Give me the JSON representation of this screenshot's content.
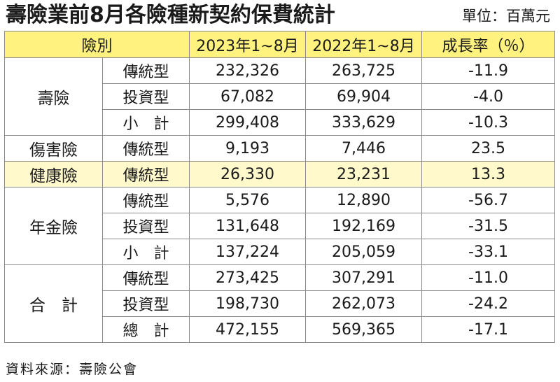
{
  "title": "壽險業前8月各險種新契約保費統計",
  "unit": "單位：百萬元",
  "header": {
    "category": "險別",
    "col_2023": "2023年1~8月",
    "col_2022": "2022年1~8月",
    "growth": "成長率（％）"
  },
  "groups": {
    "life": "壽險",
    "injury": "傷害險",
    "health": "健康險",
    "annuity": "年金險",
    "total": "合　計"
  },
  "rows": [
    {
      "type": "傳統型",
      "y2023": "232,326",
      "y2022": "263,725",
      "growth": "-11.9"
    },
    {
      "type": "投資型",
      "y2023": "67,082",
      "y2022": "69,904",
      "growth": "-4.0"
    },
    {
      "type": "小　計",
      "y2023": "299,408",
      "y2022": "333,629",
      "growth": "-10.3"
    },
    {
      "type": "傳統型",
      "y2023": "9,193",
      "y2022": "7,446",
      "growth": "23.5"
    },
    {
      "type": "傳統型",
      "y2023": "26,330",
      "y2022": "23,231",
      "growth": "13.3"
    },
    {
      "type": "傳統型",
      "y2023": "5,576",
      "y2022": "12,890",
      "growth": "-56.7"
    },
    {
      "type": "投資型",
      "y2023": "131,648",
      "y2022": "192,169",
      "growth": "-31.5"
    },
    {
      "type": "小　計",
      "y2023": "137,224",
      "y2022": "205,059",
      "growth": "-33.1"
    },
    {
      "type": "傳統型",
      "y2023": "273,425",
      "y2022": "307,291",
      "growth": "-11.0"
    },
    {
      "type": "投資型",
      "y2023": "198,730",
      "y2022": "262,073",
      "growth": "-24.2"
    },
    {
      "type": "總　計",
      "y2023": "472,155",
      "y2022": "569,365",
      "growth": "-17.1"
    }
  ],
  "source": "資料來源：壽險公會",
  "colors": {
    "header_bg": "#fff27f",
    "shade_bg": "#fff9cc",
    "border": "#8a8a8a"
  }
}
